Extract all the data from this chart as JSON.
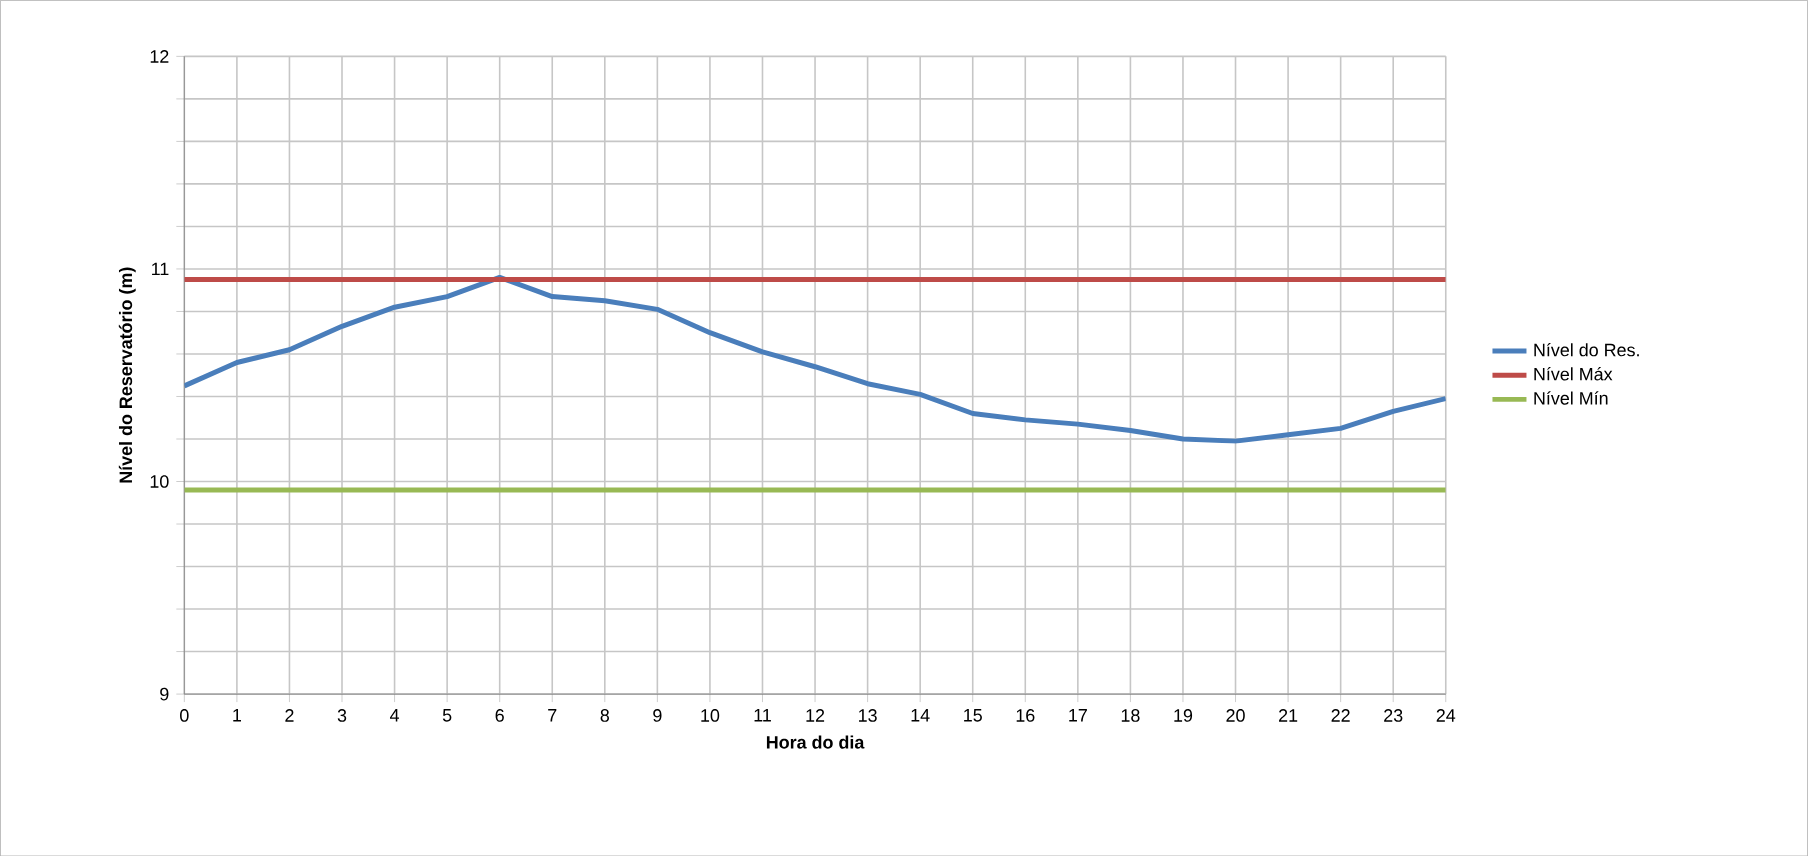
{
  "chart_data": {
    "type": "line",
    "xlabel": "Hora do dia",
    "ylabel": "Nível do Reservatório (m)",
    "x": [
      0,
      1,
      2,
      3,
      4,
      5,
      6,
      7,
      8,
      9,
      10,
      11,
      12,
      13,
      14,
      15,
      16,
      17,
      18,
      19,
      20,
      21,
      22,
      23,
      24
    ],
    "series": [
      {
        "name": "Nível do Res.",
        "color": "#4a7ebb",
        "values": [
          10.45,
          10.56,
          10.62,
          10.73,
          10.82,
          10.87,
          10.96,
          10.87,
          10.85,
          10.81,
          10.7,
          10.61,
          10.54,
          10.46,
          10.41,
          10.32,
          10.29,
          10.27,
          10.24,
          10.2,
          10.19,
          10.22,
          10.25,
          10.33,
          10.39
        ]
      },
      {
        "name": "Nível Máx",
        "color": "#be4b48",
        "values": [
          10.95,
          10.95,
          10.95,
          10.95,
          10.95,
          10.95,
          10.95,
          10.95,
          10.95,
          10.95,
          10.95,
          10.95,
          10.95,
          10.95,
          10.95,
          10.95,
          10.95,
          10.95,
          10.95,
          10.95,
          10.95,
          10.95,
          10.95,
          10.95,
          10.95
        ]
      },
      {
        "name": "Nível Mín",
        "color": "#98b954",
        "values": [
          9.96,
          9.96,
          9.96,
          9.96,
          9.96,
          9.96,
          9.96,
          9.96,
          9.96,
          9.96,
          9.96,
          9.96,
          9.96,
          9.96,
          9.96,
          9.96,
          9.96,
          9.96,
          9.96,
          9.96,
          9.96,
          9.96,
          9.96,
          9.96,
          9.96
        ]
      }
    ],
    "xlim": [
      0,
      24
    ],
    "xticks": [
      0,
      1,
      2,
      3,
      4,
      5,
      6,
      7,
      8,
      9,
      10,
      11,
      12,
      13,
      14,
      15,
      16,
      17,
      18,
      19,
      20,
      21,
      22,
      23,
      24
    ],
    "ylim": [
      9,
      12
    ],
    "yticks": [
      9,
      {
        "value": 9.2,
        "label": null
      },
      {
        "value": 9.4,
        "label": null
      },
      {
        "value": 9.6,
        "label": null
      },
      {
        "value": 9.8,
        "label": null
      },
      10,
      {
        "value": 10.2,
        "label": null
      },
      {
        "value": 10.4,
        "label": null
      },
      {
        "value": 10.6,
        "label": null
      },
      {
        "value": 10.8,
        "label": null
      },
      11,
      {
        "value": 11.2,
        "label": null
      },
      {
        "value": 11.4,
        "label": null
      },
      {
        "value": 11.6,
        "label": null
      },
      {
        "value": 11.8,
        "label": null
      },
      12
    ],
    "grid": true,
    "legend": "right",
    "marker": "none",
    "line_style": "solid"
  }
}
